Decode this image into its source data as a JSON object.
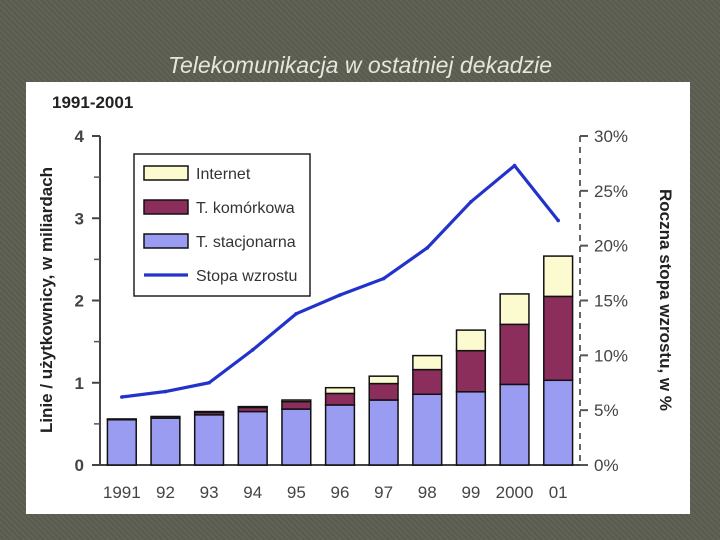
{
  "slide": {
    "title": "Telekomunikacja w ostatniej dekadzie"
  },
  "chart_data": {
    "type": "bar",
    "stacked": true,
    "period_label": "1991-2001",
    "categories": [
      "1991",
      "92",
      "93",
      "94",
      "95",
      "96",
      "97",
      "98",
      "99",
      "2000",
      "01"
    ],
    "series": [
      {
        "name": "T. stacjonarna",
        "color": "#9a9cf2",
        "values": [
          0.55,
          0.57,
          0.61,
          0.65,
          0.68,
          0.73,
          0.79,
          0.86,
          0.89,
          0.98,
          1.03
        ]
      },
      {
        "name": "T. komórkowa",
        "color": "#8b2e5b",
        "values": [
          0.01,
          0.02,
          0.03,
          0.05,
          0.09,
          0.14,
          0.2,
          0.3,
          0.5,
          0.73,
          1.02
        ]
      },
      {
        "name": "Internet",
        "color": "#fbfbcf",
        "values": [
          0.0,
          0.0,
          0.01,
          0.01,
          0.02,
          0.07,
          0.09,
          0.17,
          0.25,
          0.37,
          0.49
        ]
      }
    ],
    "line_series": {
      "name": "Stopa wzrostu",
      "color": "#2233cc",
      "axis": "right",
      "values": [
        6.2,
        6.7,
        7.5,
        10.5,
        13.8,
        15.5,
        17.0,
        19.8,
        24.0,
        27.3,
        22.3
      ]
    },
    "ylabel": "Linie / użytkownicy, w miliardach",
    "y2label": "Roczna stopa wzrostu, w %",
    "ylim": [
      0,
      4
    ],
    "y2lim": [
      0,
      30
    ],
    "yticks": [
      "0",
      "1",
      "2",
      "3",
      "4"
    ],
    "y2ticks": [
      "0%",
      "5%",
      "10%",
      "15%",
      "20%",
      "25%",
      "30%"
    ],
    "grid": false,
    "legend_position": "top-left"
  }
}
